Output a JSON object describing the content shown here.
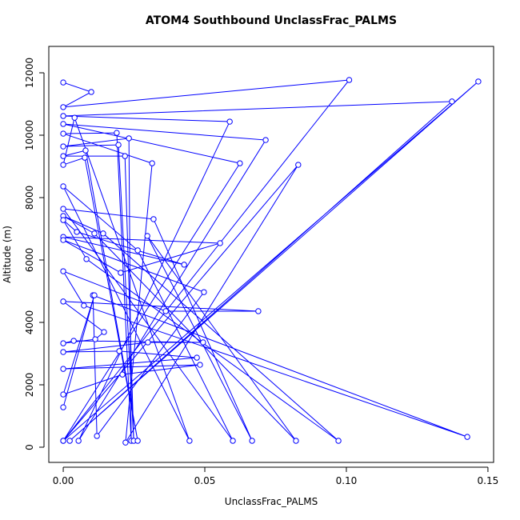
{
  "chart_data": {
    "type": "line",
    "title": "ATOM4 Southbound UnclassFrac_PALMS",
    "x_label": "UnclassFrac_PALMS",
    "y_label": "Altitude (m)",
    "color": "#0000ff",
    "x": [
      0,
      0.0099,
      0,
      0.101,
      0,
      0.1466,
      0.0023,
      0.1373,
      0,
      0.0588,
      0.0054,
      0.0715,
      0,
      0.0624,
      0,
      0.083,
      0.022,
      0.0314,
      0,
      0.0189,
      0.024,
      0.0232,
      0,
      0.0195,
      0.0249,
      0.0218,
      0,
      0.0079,
      0.0263,
      0.0076,
      0,
      0.004,
      0.0446,
      0,
      0.0263,
      0.0599,
      0,
      0.0319,
      0.0667,
      0.0297,
      0.0822,
      0.011,
      0,
      0.0141,
      0.0972,
      0.0082,
      0,
      0.0048,
      0.0427,
      0,
      0.0554,
      0.0203,
      0,
      0.0497,
      0.0119,
      0.0105,
      0.1427,
      0.0073,
      0,
      0.0362,
      0.0689,
      0,
      0.0144,
      0.0113,
      0,
      0.0037,
      0.0494,
      0.0299,
      0,
      0.0198,
      0.0472,
      0,
      0.0483,
      0.0209,
      0,
      0.011,
      0
    ],
    "values": [
      11690,
      11385,
      10900,
      11770,
      205,
      11720,
      205,
      11080,
      10615,
      10435,
      205,
      9845,
      10360,
      9100,
      205,
      9050,
      150,
      9100,
      10050,
      10075,
      205,
      9900,
      9640,
      9690,
      205,
      9330,
      9330,
      9510,
      205,
      9280,
      9050,
      10560,
      205,
      8360,
      6310,
      205,
      7640,
      7310,
      205,
      6770,
      205,
      6850,
      7410,
      6850,
      205,
      6030,
      7280,
      6900,
      5850,
      6740,
      6540,
      5590,
      6640,
      4970,
      360,
      4870,
      330,
      4540,
      5640,
      4360,
      4360,
      4670,
      3690,
      3460,
      3330,
      3410,
      3360,
      3360,
      3050,
      3080,
      2870,
      2510,
      2640,
      2330,
      1690,
      4870,
      1280
    ],
    "xlim": [
      -0.0051,
      0.152
    ],
    "ylim": [
      -487,
      12846
    ],
    "xticks": [
      {
        "value": 0,
        "label": "0.00"
      },
      0.05,
      {
        "value": 0.1,
        "label": "0.10"
      },
      0.15
    ],
    "yticks": [
      0,
      2000,
      4000,
      6000,
      8000,
      10000,
      12000
    ]
  }
}
